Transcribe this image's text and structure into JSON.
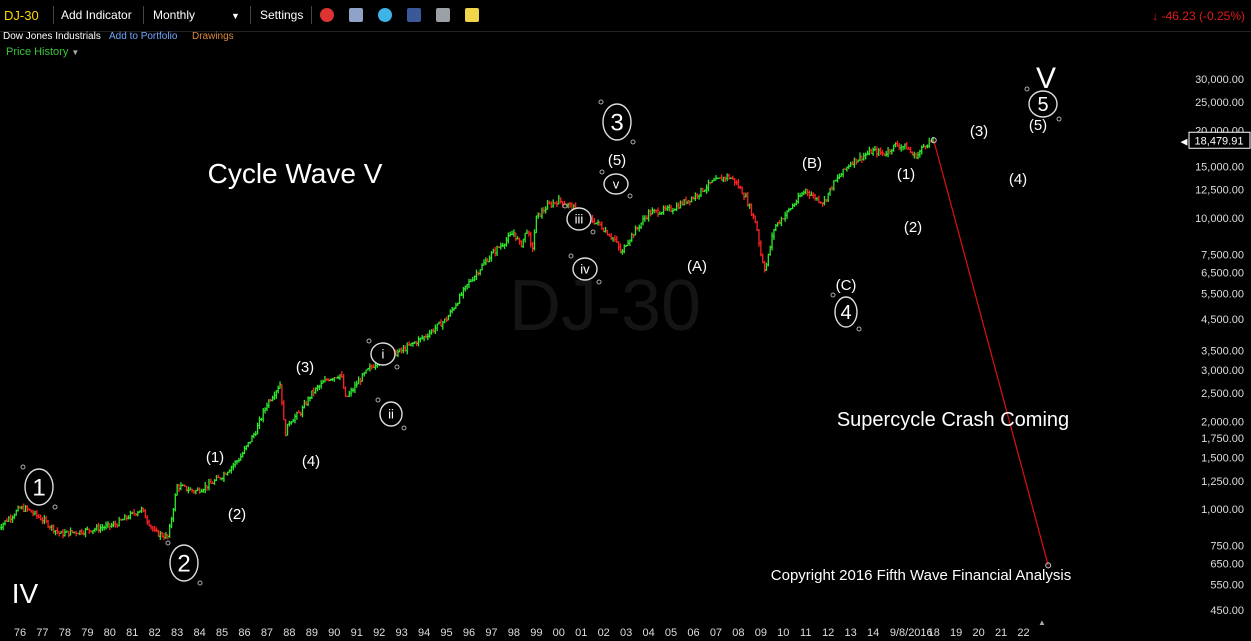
{
  "toolbar": {
    "symbol": "DJ-30",
    "add_indicator": "Add Indicator",
    "interval": "Monthly",
    "settings": "Settings",
    "change": "-46.23 (-0.25%)",
    "icons": [
      "alarm-clock-icon",
      "stack-icon",
      "twitter-icon",
      "facebook-icon",
      "camera-icon",
      "note-icon"
    ]
  },
  "subline": {
    "name": "Dow Jones Industrials",
    "add_to_portfolio": "Add to Portfolio",
    "drawings": "Drawings"
  },
  "price_history": "Price History",
  "watermark": "DJ-30",
  "colors": {
    "up": "#2ee82e",
    "down": "#ff2020",
    "projection": "#e01010",
    "background": "#000000",
    "text": "#ffffff"
  },
  "chart_data": {
    "type": "bar",
    "style": "monthly OHLC bars, green up / red down, log price scale",
    "x_ticks": [
      "76",
      "77",
      "78",
      "79",
      "80",
      "81",
      "82",
      "83",
      "84",
      "85",
      "86",
      "87",
      "88",
      "89",
      "90",
      "91",
      "92",
      "93",
      "94",
      "95",
      "96",
      "97",
      "98",
      "99",
      "00",
      "01",
      "02",
      "03",
      "04",
      "05",
      "06",
      "07",
      "08",
      "09",
      "10",
      "11",
      "12",
      "13",
      "14",
      "9/8/2016",
      "18",
      "19",
      "20",
      "21",
      "22"
    ],
    "y_ticks": [
      450,
      550,
      650,
      750,
      1000,
      1250,
      1500,
      1750,
      2000,
      2500,
      3000,
      3500,
      4500,
      5500,
      6500,
      7500,
      10000,
      12500,
      15000,
      20000,
      25000,
      30000
    ],
    "y_tick_labels": [
      "450.00",
      "550.00",
      "650.00",
      "750.00",
      "1,000.00",
      "1,250.00",
      "1,500.00",
      "1,750.00",
      "2,000.00",
      "2,500.00",
      "3,000.00",
      "3,500.00",
      "4,500.00",
      "5,500.00",
      "6,500.00",
      "7,500.00",
      "10,000.00",
      "12,500.00",
      "15,000.00",
      "20,000.00",
      "25,000.00",
      "30,000.00"
    ],
    "ylim": [
      420,
      36000
    ],
    "log_scale": true,
    "last_price": "18,479.91",
    "series": [
      {
        "x": [
          1975.0,
          1976.0,
          1976.3,
          1977.0,
          1977.8,
          1978.2,
          1978.8,
          1979.5,
          1980.2,
          1980.9,
          1981.4,
          1982.0,
          1982.6,
          1983.0,
          1983.8,
          1984.5,
          1985.0,
          1985.8,
          1986.5,
          1987.0,
          1987.6,
          1987.8,
          1988.0,
          1988.5,
          1989.0,
          1989.7,
          1990.3,
          1990.5,
          1990.8,
          1991.0,
          1991.5,
          1992.0,
          1993.0,
          1994.0,
          1995.0,
          1996.0,
          1997.0,
          1997.6,
          1998.0,
          1998.3,
          1998.6,
          1998.8,
          1999.0,
          1999.5,
          2000.0,
          2000.5,
          2001.0,
          2001.8,
          2002.5,
          2002.8,
          2003.0,
          2004.0,
          2005.0,
          2006.0,
          2006.8,
          2007.5,
          2007.8,
          2008.3,
          2008.8,
          2009.0,
          2009.2,
          2009.6,
          2010.2,
          2011.0,
          2011.3,
          2011.8,
          2012.2,
          2013.0,
          2014.0,
          2014.5,
          2015.0,
          2015.5,
          2015.8,
          2016.0,
          2016.3,
          2016.7
        ],
        "y": [
          860,
          1005,
          1000,
          920,
          820,
          830,
          840,
          860,
          880,
          950,
          1000,
          830,
          800,
          1200,
          1150,
          1220,
          1300,
          1500,
          1850,
          2300,
          2700,
          1800,
          2000,
          2150,
          2500,
          2800,
          2900,
          2400,
          2550,
          2700,
          3000,
          3250,
          3500,
          3900,
          4500,
          6000,
          7500,
          8300,
          8900,
          8000,
          9200,
          7600,
          10000,
          11000,
          11500,
          11000,
          10300,
          9500,
          8400,
          7500,
          8200,
          10400,
          10700,
          11800,
          13200,
          13900,
          13500,
          11900,
          9500,
          7500,
          6600,
          9300,
          10500,
          12500,
          11900,
          11300,
          13000,
          15500,
          17000,
          16600,
          17800,
          17500,
          16300,
          16500,
          17900,
          18480
        ]
      },
      {
        "name": "projection",
        "x": [
          2016.7,
          2021.8
        ],
        "y": [
          18480,
          640
        ]
      }
    ],
    "annotations": [
      "Cycle Wave V",
      "Supercycle Crash Coming",
      "Copyright 2016 Fifth Wave Financial Analysis",
      "IV",
      "V",
      "1",
      "2",
      "3",
      "4",
      "5",
      "i",
      "ii",
      "iii",
      "iv",
      "v",
      "(1)",
      "(2)",
      "(3)",
      "(4)",
      "(5)",
      "(1)",
      "(2)",
      "(3)",
      "(4)",
      "(5)",
      "(A)",
      "(B)",
      "(C)",
      "(1)",
      "(2)",
      "(3)",
      "(4)",
      "(5)"
    ]
  }
}
